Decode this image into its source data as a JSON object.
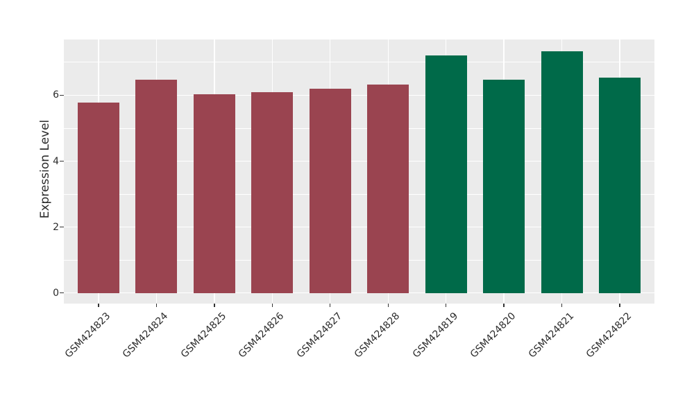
{
  "chart_data": {
    "type": "bar",
    "title": "",
    "xlabel": "",
    "ylabel": "Expression Level",
    "categories": [
      "GSM424823",
      "GSM424824",
      "GSM424825",
      "GSM424826",
      "GSM424827",
      "GSM424828",
      "GSM424819",
      "GSM424820",
      "GSM424821",
      "GSM424822"
    ],
    "values": [
      5.77,
      6.47,
      6.03,
      6.1,
      6.19,
      6.32,
      7.21,
      6.48,
      7.33,
      6.53
    ],
    "bar_colors": [
      "#9a4450",
      "#9a4450",
      "#9a4450",
      "#9a4450",
      "#9a4450",
      "#9a4450",
      "#006a49",
      "#006a49",
      "#006a49",
      "#006a49"
    ],
    "yticks": [
      0,
      2,
      4,
      6
    ],
    "yticks_minor": [
      1,
      3,
      5,
      7
    ],
    "ylim": [
      -0.32,
      7.69
    ],
    "grid": "horizontal major+minor, vertical at category centers",
    "legend_position": "none",
    "x_tick_rotation_deg": 45
  },
  "colors": {
    "figure_background": "#ffffff",
    "panel_background": "#ebebeb",
    "grid": "#ffffff",
    "tick_mark": "#333333",
    "text": "#2b2b2b",
    "group_red": "#9a4450",
    "group_green": "#006a49"
  }
}
